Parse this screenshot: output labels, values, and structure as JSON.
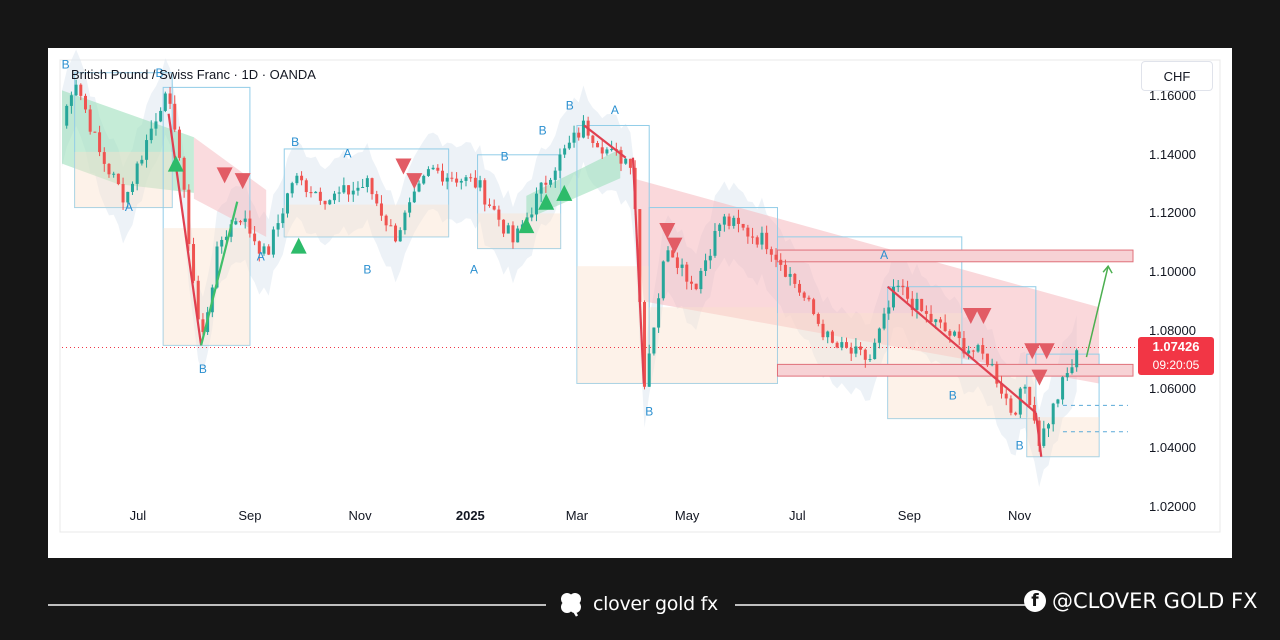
{
  "chart_title": "British Pound / Swiss Franc · 1D · OANDA",
  "currency": "CHF",
  "price_label": {
    "price": "1.07426",
    "countdown": "09:20:05"
  },
  "footer": {
    "brand": "clover gold fx",
    "social_handle": "@CLOVER GOLD FX"
  },
  "colors": {
    "bull_candle": "#26a69a",
    "bear_candle": "#ef5350",
    "price_tag": "#f23645",
    "zone_fill": "#f7d2d5",
    "zone_border": "#e0707a",
    "bull_cloud": "#9fe0bd",
    "bear_cloud": "#f5b8bd",
    "channel_line": "#92cde8",
    "signal_letter": "#2a8fd0",
    "forecast_arrow": "#4caf50"
  },
  "icons": {
    "brand_logo": "clover-icon",
    "social_logo": "facebook-icon"
  },
  "chart_data": {
    "type": "candlestick",
    "symbol": "GBPCHF",
    "timeframe": "1D",
    "source": "OANDA",
    "y_axis": {
      "ticks": [
        1.02,
        1.04,
        1.06,
        1.08,
        1.1,
        1.12,
        1.14,
        1.16
      ],
      "tick_labels": [
        "1.02000",
        "1.04000",
        "1.06000",
        "1.08000",
        "1.10000",
        "1.12000",
        "1.14000",
        "1.16000"
      ],
      "ylim": [
        1.012,
        1.172
      ]
    },
    "x_axis": {
      "tick_labels": [
        "Jul",
        "Sep",
        "Nov",
        "2025",
        "Mar",
        "May",
        "Jul",
        "Sep",
        "Nov"
      ],
      "tick_dates": [
        "2024-07-01",
        "2024-09-01",
        "2024-11-01",
        "2025-01-01",
        "2025-03-01",
        "2025-05-01",
        "2025-07-01",
        "2025-09-01",
        "2025-11-01"
      ],
      "xlim": [
        "2024-05-20",
        "2025-12-31"
      ]
    },
    "close_path": [
      {
        "date": "2024-05-20",
        "value": 1.15
      },
      {
        "date": "2024-05-27",
        "value": 1.167
      },
      {
        "date": "2024-06-10",
        "value": 1.14
      },
      {
        "date": "2024-06-24",
        "value": 1.125
      },
      {
        "date": "2024-07-15",
        "value": 1.16
      },
      {
        "date": "2024-07-22",
        "value": 1.15
      },
      {
        "date": "2024-08-05",
        "value": 1.075
      },
      {
        "date": "2024-08-15",
        "value": 1.11
      },
      {
        "date": "2024-08-26",
        "value": 1.12
      },
      {
        "date": "2024-09-10",
        "value": 1.105
      },
      {
        "date": "2024-09-25",
        "value": 1.132
      },
      {
        "date": "2024-10-15",
        "value": 1.125
      },
      {
        "date": "2024-11-05",
        "value": 1.13
      },
      {
        "date": "2024-11-20",
        "value": 1.112
      },
      {
        "date": "2024-12-10",
        "value": 1.135
      },
      {
        "date": "2025-01-05",
        "value": 1.13
      },
      {
        "date": "2025-01-25",
        "value": 1.11
      },
      {
        "date": "2025-02-15",
        "value": 1.135
      },
      {
        "date": "2025-03-05",
        "value": 1.15
      },
      {
        "date": "2025-03-20",
        "value": 1.14
      },
      {
        "date": "2025-04-01",
        "value": 1.138
      },
      {
        "date": "2025-04-07",
        "value": 1.062
      },
      {
        "date": "2025-04-20",
        "value": 1.11
      },
      {
        "date": "2025-05-05",
        "value": 1.095
      },
      {
        "date": "2025-05-20",
        "value": 1.118
      },
      {
        "date": "2025-06-15",
        "value": 1.11
      },
      {
        "date": "2025-07-01",
        "value": 1.095
      },
      {
        "date": "2025-07-20",
        "value": 1.075
      },
      {
        "date": "2025-08-10",
        "value": 1.07
      },
      {
        "date": "2025-08-25",
        "value": 1.095
      },
      {
        "date": "2025-09-10",
        "value": 1.085
      },
      {
        "date": "2025-10-01",
        "value": 1.075
      },
      {
        "date": "2025-10-15",
        "value": 1.07
      },
      {
        "date": "2025-10-28",
        "value": 1.052
      },
      {
        "date": "2025-11-05",
        "value": 1.062
      },
      {
        "date": "2025-11-12",
        "value": 1.042
      },
      {
        "date": "2025-11-25",
        "value": 1.062
      },
      {
        "date": "2025-12-05",
        "value": 1.0743
      }
    ],
    "last_price": 1.07426,
    "resistance_zone": {
      "start": "2025-06-20",
      "end": "2025-12-31",
      "low": 1.1035,
      "high": 1.1075
    },
    "support_zone": {
      "start": "2025-06-20",
      "end": "2025-12-31",
      "low": 1.0645,
      "high": 1.0685
    },
    "forecast_target": {
      "date": "2025-12-20",
      "value": 1.102
    },
    "signal_labels": [
      {
        "date": "2024-05-22",
        "value": 1.1695,
        "text": "B"
      },
      {
        "date": "2024-07-13",
        "value": 1.1665,
        "text": "B"
      },
      {
        "date": "2024-06-26",
        "value": 1.1208,
        "text": "A"
      },
      {
        "date": "2024-08-06",
        "value": 1.0655,
        "text": "B"
      },
      {
        "date": "2024-09-07",
        "value": 1.104,
        "text": "A"
      },
      {
        "date": "2024-09-26",
        "value": 1.143,
        "text": "B"
      },
      {
        "date": "2024-10-25",
        "value": 1.139,
        "text": "A"
      },
      {
        "date": "2024-11-05",
        "value": 1.0995,
        "text": "B"
      },
      {
        "date": "2025-01-03",
        "value": 1.0995,
        "text": "A"
      },
      {
        "date": "2025-01-20",
        "value": 1.138,
        "text": "B"
      },
      {
        "date": "2025-02-10",
        "value": 1.147,
        "text": "B"
      },
      {
        "date": "2025-02-25",
        "value": 1.1555,
        "text": "B"
      },
      {
        "date": "2025-03-22",
        "value": 1.154,
        "text": "A"
      },
      {
        "date": "2025-04-10",
        "value": 1.051,
        "text": "B"
      },
      {
        "date": "2025-08-18",
        "value": 1.1045,
        "text": "A"
      },
      {
        "date": "2025-09-25",
        "value": 1.0565,
        "text": "B"
      },
      {
        "date": "2025-11-01",
        "value": 1.0395,
        "text": "B"
      }
    ]
  }
}
